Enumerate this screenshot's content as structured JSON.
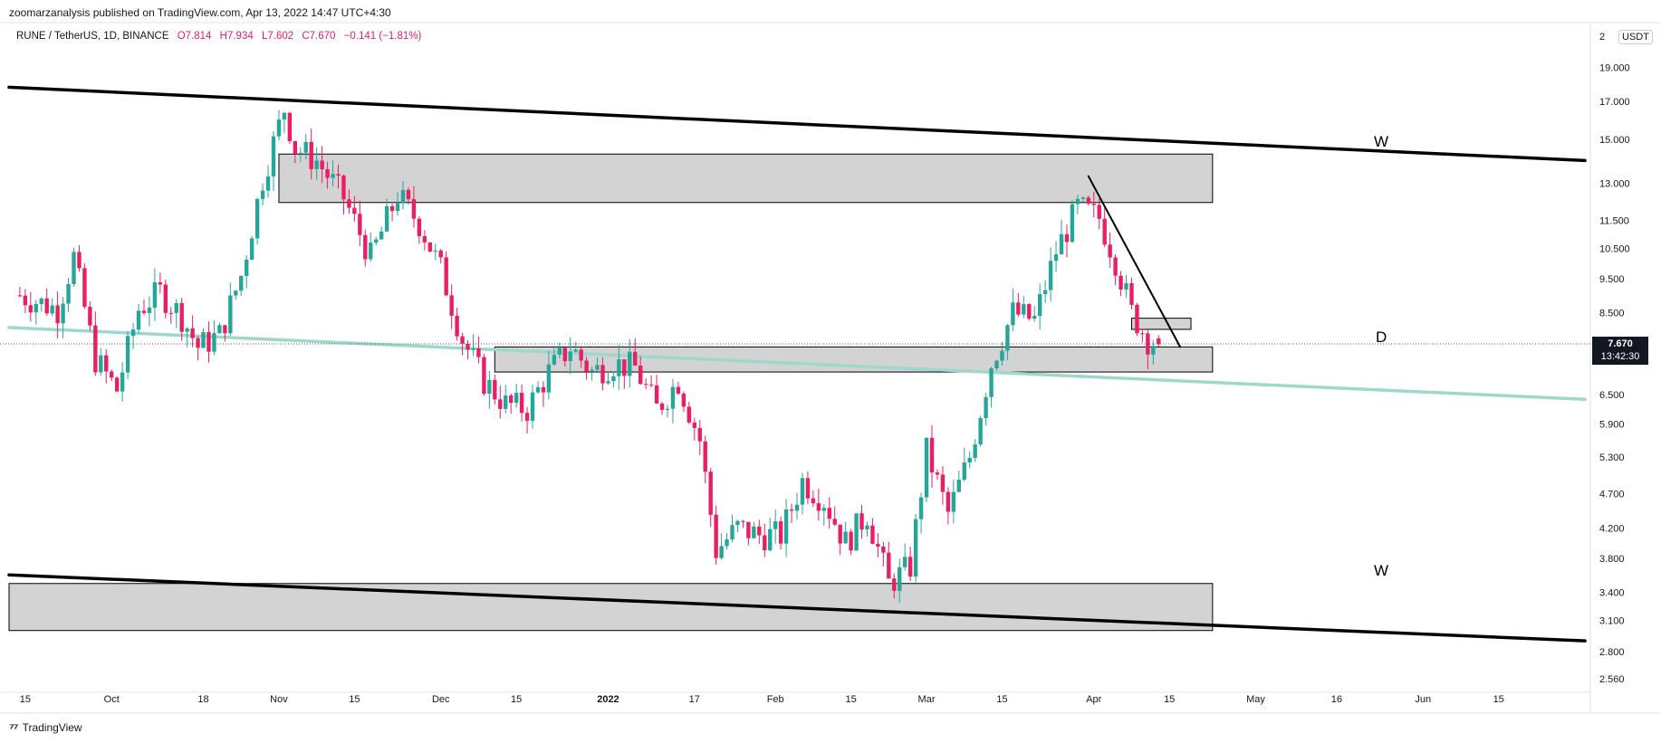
{
  "header": {
    "published": "zoomarzanalysis published on TradingView.com, Apr 13, 2022 14:47 UTC+4:30"
  },
  "legend": {
    "symbol": "RUNE / TetherUS, 1D, BINANCE",
    "open": "O7.814",
    "high": "H7.934",
    "low": "L7.602",
    "close": "C7.670",
    "change": "−0.141 (−1.81%)"
  },
  "currency_button": "USDT",
  "price_axis": {
    "top_label": "2",
    "labels": [
      "19.000",
      "17.000",
      "15.000",
      "13.000",
      "11.500",
      "10.500",
      "9.500",
      "8.500",
      "6.500",
      "5.900",
      "5.300",
      "4.700",
      "4.200",
      "3.800",
      "3.400",
      "3.100",
      "2.800",
      "2.560"
    ]
  },
  "last_price": {
    "price": "7.670",
    "countdown": "13:42:30"
  },
  "time_axis": {
    "labels": [
      "15",
      "Oct",
      "18",
      "Nov",
      "15",
      "Dec",
      "15",
      "2022",
      "17",
      "Feb",
      "15",
      "Mar",
      "15",
      "Apr",
      "15",
      "May",
      "16",
      "Jun",
      "15"
    ]
  },
  "annotations": {
    "top_wedge_label": "W",
    "bottom_wedge_label": "W",
    "middle_zone_label": "D"
  },
  "footer": {
    "brand": "TradingView"
  },
  "colors": {
    "up": "#26a69a",
    "down": "#e91e63",
    "zone_fill": "#d3d3d3",
    "trendline": "#000000",
    "teal_line": "#9ed8cd"
  },
  "chart_data": {
    "type": "candlestick",
    "title": "RUNE / TetherUS, 1D, BINANCE",
    "ohlc_last": {
      "open": 7.814,
      "high": 7.934,
      "low": 7.602,
      "close": 7.67
    },
    "y_scale": "log",
    "ylim": [
      2.45,
      22
    ],
    "x_range": [
      "2021-09-12",
      "2022-07-02"
    ],
    "closes": [
      [
        "2021-09-14",
        9.0
      ],
      [
        "2021-09-21",
        8.6
      ],
      [
        "2021-09-24",
        10.2
      ],
      [
        "2021-09-28",
        7.3
      ],
      [
        "2021-10-02",
        6.6
      ],
      [
        "2021-10-06",
        8.6
      ],
      [
        "2021-10-10",
        9.1
      ],
      [
        "2021-10-14",
        8.4
      ],
      [
        "2021-10-17",
        7.6
      ],
      [
        "2021-10-21",
        7.9
      ],
      [
        "2021-10-25",
        9.6
      ],
      [
        "2021-10-29",
        13.2
      ],
      [
        "2021-11-02",
        16.6
      ],
      [
        "2021-11-04",
        14.6
      ],
      [
        "2021-11-08",
        14.0
      ],
      [
        "2021-11-13",
        12.4
      ],
      [
        "2021-11-18",
        10.2
      ],
      [
        "2021-11-23",
        12.5
      ],
      [
        "2021-11-27",
        11.4
      ],
      [
        "2021-12-01",
        9.8
      ],
      [
        "2021-12-05",
        7.8
      ],
      [
        "2021-12-09",
        6.8
      ],
      [
        "2021-12-13",
        6.3
      ],
      [
        "2021-12-17",
        6.2
      ],
      [
        "2021-12-21",
        7.0
      ],
      [
        "2021-12-25",
        7.6
      ],
      [
        "2021-12-29",
        7.0
      ],
      [
        "2022-01-02",
        7.2
      ],
      [
        "2022-01-06",
        7.1
      ],
      [
        "2022-01-10",
        6.2
      ],
      [
        "2022-01-14",
        6.8
      ],
      [
        "2022-01-18",
        5.6
      ],
      [
        "2022-01-21",
        3.9
      ],
      [
        "2022-01-25",
        4.2
      ],
      [
        "2022-01-29",
        4.1
      ],
      [
        "2022-02-02",
        4.1
      ],
      [
        "2022-02-06",
        4.9
      ],
      [
        "2022-02-10",
        4.6
      ],
      [
        "2022-02-14",
        4.0
      ],
      [
        "2022-02-18",
        4.4
      ],
      [
        "2022-02-22",
        3.5
      ],
      [
        "2022-02-26",
        3.7
      ],
      [
        "2022-03-01",
        5.4
      ],
      [
        "2022-03-05",
        4.4
      ],
      [
        "2022-03-09",
        5.3
      ],
      [
        "2022-03-13",
        7.2
      ],
      [
        "2022-03-17",
        8.5
      ],
      [
        "2022-03-21",
        8.3
      ],
      [
        "2022-03-25",
        10.4
      ],
      [
        "2022-03-29",
        12.0
      ],
      [
        "2022-04-02",
        11.6
      ],
      [
        "2022-04-05",
        10.1
      ],
      [
        "2022-04-08",
        8.5
      ],
      [
        "2022-04-11",
        7.8
      ],
      [
        "2022-04-13",
        7.67
      ]
    ],
    "zones": [
      {
        "from": "2021-11-01",
        "to": "2022-04-23",
        "low": 12.2,
        "high": 14.3
      },
      {
        "from": "2021-12-11",
        "to": "2022-04-23",
        "low": 7.0,
        "high": 7.6
      },
      {
        "from": "2022-04-08",
        "to": "2022-04-19",
        "low": 8.05,
        "high": 8.35
      },
      {
        "from": "2021-09-12",
        "to": "2022-04-23",
        "low": 3.0,
        "high": 3.5
      }
    ],
    "trendlines": [
      {
        "name": "upper",
        "points": [
          [
            "2021-09-12",
            17.8
          ],
          [
            "2022-07-01",
            14.0
          ]
        ]
      },
      {
        "name": "lower",
        "points": [
          [
            "2021-09-12",
            3.6
          ],
          [
            "2022-07-01",
            2.9
          ]
        ]
      },
      {
        "name": "teal",
        "points": [
          [
            "2021-09-12",
            8.1
          ],
          [
            "2022-07-01",
            6.4
          ]
        ]
      },
      {
        "name": "apr-down",
        "points": [
          [
            "2022-03-31",
            13.3
          ],
          [
            "2022-04-17",
            7.6
          ]
        ]
      }
    ]
  }
}
